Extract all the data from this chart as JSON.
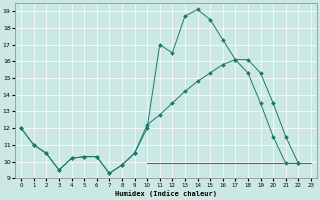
{
  "xlabel": "Humidex (Indice chaleur)",
  "xlim": [
    -0.5,
    23.5
  ],
  "ylim": [
    9,
    19.5
  ],
  "xticks": [
    0,
    1,
    2,
    3,
    4,
    5,
    6,
    7,
    8,
    9,
    10,
    11,
    12,
    13,
    14,
    15,
    16,
    17,
    18,
    19,
    20,
    21,
    22,
    23
  ],
  "yticks": [
    9,
    10,
    11,
    12,
    13,
    14,
    15,
    16,
    17,
    18,
    19
  ],
  "bg_color": "#cce8e4",
  "line_color": "#1a7a6a",
  "line1_x": [
    0,
    1,
    2,
    3,
    4,
    5,
    6,
    7,
    8,
    9,
    10,
    11,
    12,
    13,
    14,
    15,
    16,
    17,
    18,
    19,
    20,
    21,
    22
  ],
  "line1_y": [
    12,
    11,
    10.5,
    9.5,
    10.2,
    10.3,
    10.3,
    9.3,
    9.8,
    10.5,
    12.0,
    17.0,
    16.5,
    18.7,
    19.1,
    18.5,
    17.3,
    16.1,
    15.3,
    13.5,
    11.5,
    9.9,
    9.9
  ],
  "line2_x": [
    0,
    1,
    2,
    3,
    4,
    5,
    6,
    7,
    8,
    9,
    10,
    11,
    12,
    13,
    14,
    15,
    16,
    17,
    18,
    19,
    20,
    21,
    22
  ],
  "line2_y": [
    12,
    11,
    10.5,
    9.5,
    10.2,
    10.3,
    10.3,
    9.3,
    9.8,
    10.5,
    12.2,
    12.8,
    13.5,
    14.2,
    14.8,
    15.3,
    15.8,
    16.1,
    16.1,
    15.3,
    13.5,
    11.5,
    9.9
  ],
  "line3_x": [
    10,
    11,
    12,
    13,
    14,
    15,
    16,
    17,
    18,
    19,
    20,
    21,
    22,
    23
  ],
  "line3_y": [
    9.9,
    9.9,
    9.9,
    9.9,
    9.9,
    9.9,
    9.9,
    9.9,
    9.9,
    9.9,
    9.9,
    9.9,
    9.9,
    9.9
  ],
  "figsize": [
    3.2,
    2.0
  ],
  "dpi": 100
}
